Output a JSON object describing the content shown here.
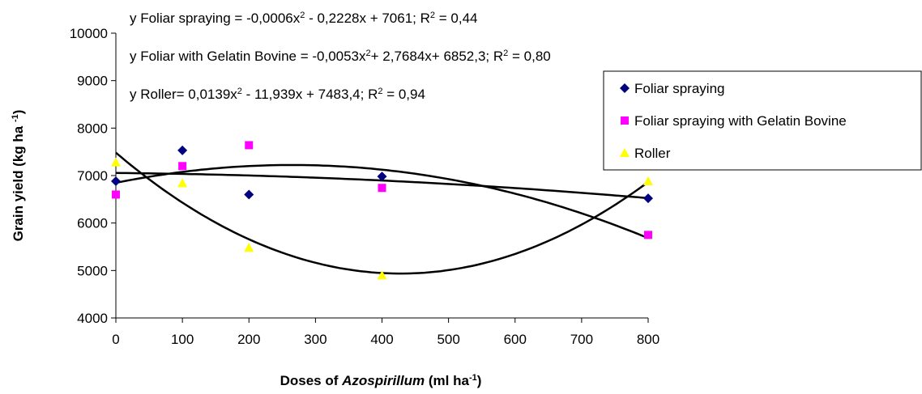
{
  "chart_data": {
    "type": "scatter",
    "x_label": [
      {
        "text": "Doses of "
      },
      {
        "text": "Azospirillum",
        "style": "italic"
      },
      {
        "text": "  (ml ha"
      },
      {
        "text": "-1",
        "style": "sup"
      },
      {
        "text": ")"
      }
    ],
    "y_label": [
      {
        "text": "Grain yield  (kg ha "
      },
      {
        "text": "-1",
        "style": "sup"
      },
      {
        "text": ")"
      }
    ],
    "equations": [
      [
        {
          "text": "y Foliar spraying = -0,0006x"
        },
        {
          "text": "2",
          "style": "sup"
        },
        {
          "text": " - 0,2228x + 7061; R"
        },
        {
          "text": "2",
          "style": "sup"
        },
        {
          "text": " = 0,44"
        }
      ],
      [
        {
          "text": "y Foliar with Gelatin Bovine = -0,0053x"
        },
        {
          "text": "2",
          "style": "sup"
        },
        {
          "text": "+ 2,7684x+ 6852,3; R"
        },
        {
          "text": "2",
          "style": "sup"
        },
        {
          "text": " = 0,80"
        }
      ],
      [
        {
          "text": "y Roller= 0,0139x"
        },
        {
          "text": "2",
          "style": "sup"
        },
        {
          "text": " - 11,939x + 7483,4; R"
        },
        {
          "text": "2",
          "style": "sup"
        },
        {
          "text": " = 0,94"
        }
      ]
    ],
    "x": [
      0,
      100,
      200,
      400,
      800
    ],
    "series": [
      {
        "name": "Foliar spraying",
        "color": "#000080",
        "marker": "diamond",
        "values": [
          6880,
          7530,
          6600,
          6980,
          6520
        ]
      },
      {
        "name": "Foliar spraying with Gelatin Bovine",
        "color": "#ff00ff",
        "marker": "square",
        "values": [
          6600,
          7200,
          7640,
          6740,
          5750
        ]
      },
      {
        "name": "Roller",
        "color": "#ffff00",
        "marker": "triangle",
        "values": [
          7280,
          6840,
          5480,
          4900,
          6880
        ]
      }
    ],
    "trendline": "poly2",
    "xlim": [
      0,
      800
    ],
    "xticks": [
      0,
      100,
      200,
      300,
      400,
      500,
      600,
      700,
      800
    ],
    "ylim": [
      4000,
      10000
    ],
    "yticks": [
      4000,
      5000,
      6000,
      7000,
      8000,
      9000,
      10000
    ],
    "legend": "right"
  }
}
